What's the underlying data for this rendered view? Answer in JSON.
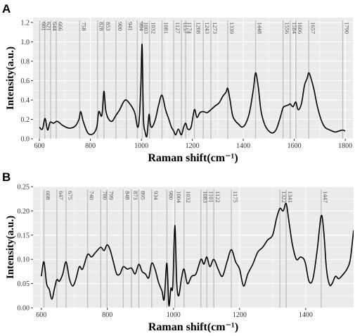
{
  "chart_data": [
    {
      "panel": "A",
      "type": "line",
      "xlabel": "Raman shift(cm⁻¹)",
      "ylabel": "Intensity(a.u.)",
      "xlim": [
        575,
        1830
      ],
      "ylim": [
        0,
        1.25
      ],
      "xticks": [
        600,
        800,
        1000,
        1200,
        1400,
        1600,
        1800
      ],
      "xtick_labels": [
        "600",
        "800",
        "1000",
        "1200",
        "1400",
        "1600",
        "1800"
      ],
      "yticks": [
        0.0,
        0.2,
        0.4,
        0.6,
        0.8,
        1.0,
        1.2
      ],
      "ytick_labels": [
        "0.0",
        "0.2",
        "0.4",
        "0.6",
        "0.8",
        "1.0",
        "1.2"
      ],
      "grid": true,
      "peaks": [
        601,
        621,
        644,
        666,
        758,
        828,
        853,
        900,
        941,
        984,
        1003,
        1032,
        1081,
        1127,
        1157,
        1174,
        1208,
        1243,
        1273,
        1339,
        1448,
        1556,
        1584,
        1606,
        1657,
        1790
      ],
      "peak_labels": [
        "601",
        "621",
        "644",
        "666",
        "758",
        "828",
        "853",
        "900",
        "941",
        "984",
        "1003",
        "1032",
        "1081",
        "1127",
        "1157",
        "1174",
        "1208",
        "1243",
        "1273",
        "1339",
        "1448",
        "1556",
        "1584",
        "1606",
        "1657",
        "1790"
      ],
      "x": [
        600,
        612,
        622,
        632,
        642,
        655,
        670,
        690,
        715,
        740,
        755,
        762,
        772,
        790,
        810,
        825,
        833,
        845,
        853,
        860,
        870,
        885,
        900,
        915,
        930,
        941,
        955,
        965,
        975,
        985,
        992,
        998,
        1003,
        1008,
        1015,
        1022,
        1030,
        1035,
        1042,
        1055,
        1068,
        1081,
        1095,
        1108,
        1118,
        1127,
        1135,
        1145,
        1157,
        1166,
        1174,
        1182,
        1195,
        1208,
        1218,
        1230,
        1243,
        1258,
        1273,
        1290,
        1305,
        1320,
        1332,
        1339,
        1348,
        1358,
        1370,
        1382,
        1395,
        1410,
        1425,
        1440,
        1448,
        1458,
        1470,
        1485,
        1500,
        1515,
        1530,
        1545,
        1556,
        1568,
        1578,
        1584,
        1595,
        1606,
        1615,
        1628,
        1640,
        1650,
        1657,
        1666,
        1678,
        1690,
        1705,
        1720,
        1740,
        1760,
        1775,
        1790,
        1800
      ],
      "y": [
        0.12,
        0.1,
        0.21,
        0.09,
        0.17,
        0.16,
        0.18,
        0.14,
        0.11,
        0.13,
        0.2,
        0.28,
        0.18,
        0.06,
        0.05,
        0.12,
        0.28,
        0.24,
        0.49,
        0.3,
        0.21,
        0.18,
        0.24,
        0.3,
        0.38,
        0.4,
        0.36,
        0.32,
        0.26,
        0.12,
        0.21,
        0.55,
        0.97,
        0.22,
        0.07,
        0.03,
        0.25,
        0.15,
        0.12,
        0.2,
        0.35,
        0.45,
        0.3,
        0.2,
        0.12,
        0.08,
        0.04,
        0.1,
        0.04,
        0.12,
        0.16,
        0.1,
        0.12,
        0.3,
        0.22,
        0.27,
        0.28,
        0.27,
        0.3,
        0.34,
        0.37,
        0.44,
        0.48,
        0.52,
        0.4,
        0.24,
        0.18,
        0.15,
        0.12,
        0.16,
        0.28,
        0.52,
        0.68,
        0.55,
        0.28,
        0.14,
        0.08,
        0.06,
        0.1,
        0.22,
        0.32,
        0.34,
        0.35,
        0.36,
        0.33,
        0.38,
        0.3,
        0.36,
        0.55,
        0.62,
        0.68,
        0.62,
        0.5,
        0.34,
        0.2,
        0.12,
        0.09,
        0.07,
        0.08,
        0.09,
        0.08
      ]
    },
    {
      "panel": "B",
      "type": "line",
      "xlabel": "Raman shift(cm⁻¹)",
      "ylabel": "Intensity(a.u.)",
      "xlim": [
        575,
        1545
      ],
      "ylim": [
        0,
        0.25
      ],
      "xticks": [
        600,
        800,
        1000,
        1200,
        1400
      ],
      "xtick_labels": [
        "600",
        "800",
        "1000",
        "1200",
        "1400"
      ],
      "yticks": [
        0.0,
        0.05,
        0.1,
        0.15,
        0.2,
        0.25
      ],
      "ytick_labels": [
        "0.00",
        "0.05",
        "0.10",
        "0.15",
        "0.20",
        "0.25"
      ],
      "grid": true,
      "peaks": [
        608,
        647,
        675,
        740,
        780,
        799,
        848,
        873,
        895,
        934,
        980,
        1004,
        1032,
        1083,
        1101,
        1122,
        1175,
        1322,
        1341,
        1447
      ],
      "peak_labels": [
        "608",
        "647",
        "675",
        "740",
        "780",
        "799",
        "848",
        "873",
        "895",
        "934",
        "980",
        "1004",
        "1032",
        "1083",
        "1101",
        "1122",
        "1175",
        "1322",
        "1341",
        "1447"
      ],
      "x": [
        600,
        608,
        616,
        624,
        632,
        640,
        647,
        655,
        665,
        675,
        685,
        695,
        705,
        715,
        725,
        740,
        752,
        765,
        780,
        790,
        799,
        808,
        818,
        828,
        838,
        848,
        860,
        873,
        884,
        895,
        905,
        915,
        925,
        934,
        944,
        955,
        965,
        972,
        980,
        986,
        992,
        998,
        1004,
        1010,
        1016,
        1024,
        1032,
        1042,
        1055,
        1068,
        1083,
        1092,
        1101,
        1110,
        1122,
        1135,
        1148,
        1162,
        1175,
        1188,
        1200,
        1212,
        1225,
        1240,
        1255,
        1270,
        1285,
        1300,
        1312,
        1322,
        1332,
        1341,
        1350,
        1360,
        1372,
        1385,
        1398,
        1410,
        1422,
        1435,
        1447,
        1455,
        1463,
        1472,
        1480,
        1490,
        1500,
        1512,
        1525,
        1535,
        1545
      ],
      "y": [
        0.065,
        0.095,
        0.05,
        0.038,
        0.018,
        0.04,
        0.058,
        0.055,
        0.07,
        0.095,
        0.06,
        0.045,
        0.06,
        0.085,
        0.08,
        0.11,
        0.105,
        0.115,
        0.125,
        0.118,
        0.13,
        0.12,
        0.095,
        0.07,
        0.07,
        0.085,
        0.08,
        0.082,
        0.07,
        0.09,
        0.075,
        0.07,
        0.062,
        0.092,
        0.08,
        0.052,
        0.035,
        0.018,
        0.092,
        0.005,
        0.04,
        0.045,
        0.17,
        0.05,
        0.025,
        0.06,
        0.08,
        0.05,
        0.065,
        0.07,
        0.1,
        0.09,
        0.105,
        0.085,
        0.1,
        0.08,
        0.065,
        0.095,
        0.12,
        0.095,
        0.08,
        0.045,
        0.07,
        0.09,
        0.115,
        0.125,
        0.14,
        0.15,
        0.185,
        0.205,
        0.2,
        0.215,
        0.175,
        0.13,
        0.1,
        0.105,
        0.095,
        0.055,
        0.06,
        0.12,
        0.19,
        0.155,
        0.08,
        0.048,
        0.05,
        0.065,
        0.06,
        0.068,
        0.08,
        0.1,
        0.16
      ]
    }
  ],
  "style": {
    "plot_bg": "#ebebeb",
    "grid_color": "#ffffff",
    "peak_line_color": "#c0c0c0",
    "line_color": "#000000",
    "text_color": "#333333"
  }
}
